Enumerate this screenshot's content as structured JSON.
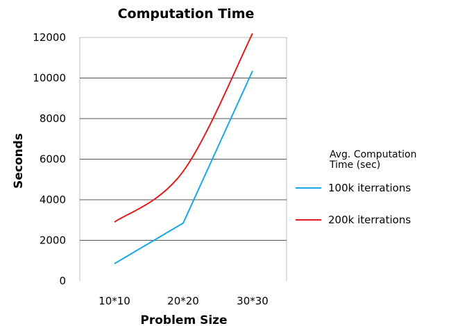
{
  "chart_data": {
    "type": "line",
    "title": "Computation Time",
    "xlabel": "Problem Size",
    "ylabel": "Seconds",
    "categories": [
      "10*10",
      "20*20",
      "30*30"
    ],
    "ylim": [
      0,
      12000
    ],
    "yticks": [
      0,
      2000,
      4000,
      6000,
      8000,
      10000,
      12000
    ],
    "grid": true,
    "legend": {
      "title_line1": "Avg. Computation",
      "title_line2": "Time (sec)",
      "placement": "right"
    },
    "series": [
      {
        "name": "100k iterrations",
        "color": "#1aa7e8",
        "values": [
          850,
          2850,
          10350
        ],
        "smooth": false
      },
      {
        "name": "200k iterrations",
        "color": "#e01b1b",
        "values": [
          2900,
          5400,
          12200
        ],
        "smooth": true
      }
    ]
  }
}
